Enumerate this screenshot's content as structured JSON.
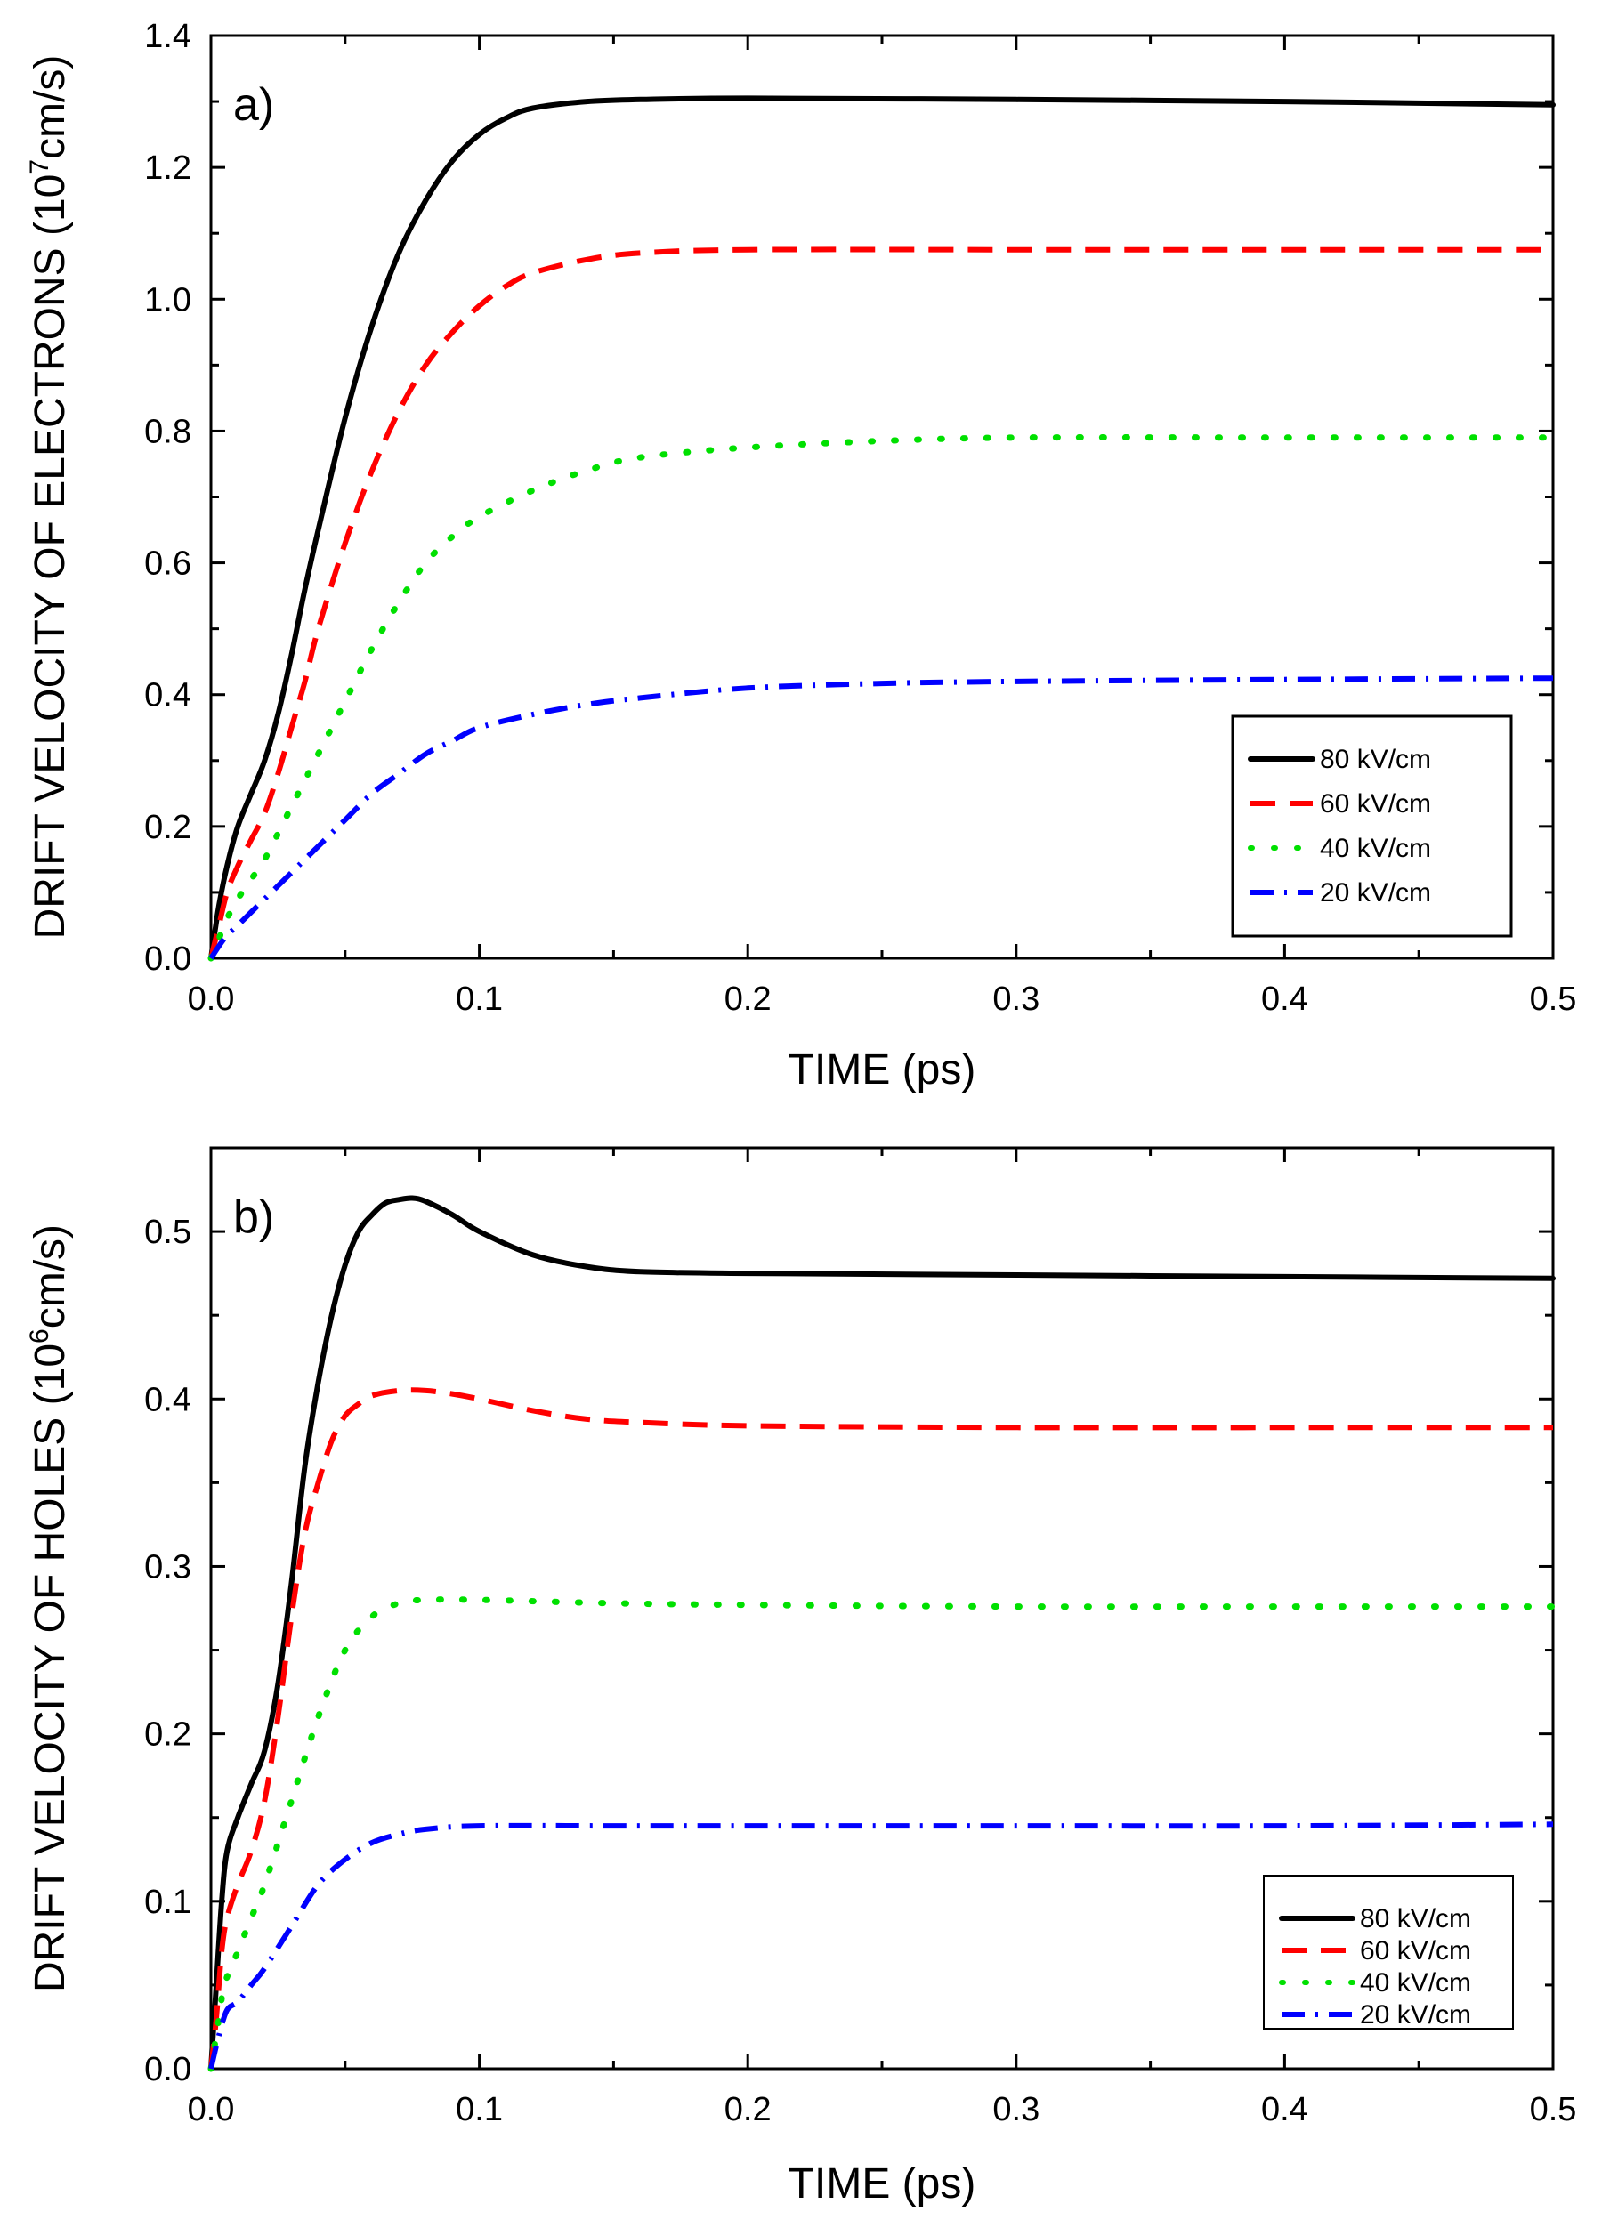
{
  "chart_data": [
    {
      "type": "line",
      "panel_label": "a)",
      "xlabel": "TIME (ps)",
      "ylabel_main": "DRIFT VELOCITY OF ELECTRONS (10",
      "ylabel_exp": "7",
      "ylabel_tail": "cm/s)",
      "xlim": [
        0,
        0.5
      ],
      "ylim": [
        0,
        1.4
      ],
      "xticks": [
        0.0,
        0.1,
        0.2,
        0.3,
        0.4,
        0.5
      ],
      "xtick_labels": [
        "0.0",
        "0.1",
        "0.2",
        "0.3",
        "0.4",
        "0.5"
      ],
      "yticks": [
        0.0,
        0.2,
        0.4,
        0.6,
        0.8,
        1.0,
        1.2,
        1.4
      ],
      "ytick_labels": [
        "0.0",
        "0.2",
        "0.4",
        "0.6",
        "0.8",
        "1.0",
        "1.2",
        "1.4"
      ],
      "legend_position": "bottom-right",
      "series": [
        {
          "name": "80 kV/cm",
          "style": "solid",
          "color": "#000000",
          "points": [
            [
              0,
              0
            ],
            [
              0.003,
              0.08
            ],
            [
              0.006,
              0.14
            ],
            [
              0.01,
              0.2
            ],
            [
              0.015,
              0.25
            ],
            [
              0.02,
              0.3
            ],
            [
              0.025,
              0.37
            ],
            [
              0.03,
              0.46
            ],
            [
              0.035,
              0.56
            ],
            [
              0.04,
              0.65
            ],
            [
              0.05,
              0.82
            ],
            [
              0.06,
              0.96
            ],
            [
              0.07,
              1.07
            ],
            [
              0.08,
              1.15
            ],
            [
              0.09,
              1.21
            ],
            [
              0.1,
              1.25
            ],
            [
              0.11,
              1.275
            ],
            [
              0.12,
              1.29
            ],
            [
              0.14,
              1.3
            ],
            [
              0.16,
              1.303
            ],
            [
              0.2,
              1.305
            ],
            [
              0.3,
              1.303
            ],
            [
              0.4,
              1.3
            ],
            [
              0.5,
              1.295
            ]
          ]
        },
        {
          "name": "60 kV/cm",
          "style": "dashed",
          "color": "#ff0000",
          "points": [
            [
              0,
              0
            ],
            [
              0.003,
              0.05
            ],
            [
              0.006,
              0.1
            ],
            [
              0.01,
              0.14
            ],
            [
              0.015,
              0.18
            ],
            [
              0.02,
              0.22
            ],
            [
              0.025,
              0.28
            ],
            [
              0.03,
              0.35
            ],
            [
              0.035,
              0.42
            ],
            [
              0.04,
              0.5
            ],
            [
              0.05,
              0.63
            ],
            [
              0.06,
              0.74
            ],
            [
              0.07,
              0.83
            ],
            [
              0.08,
              0.9
            ],
            [
              0.09,
              0.95
            ],
            [
              0.1,
              0.99
            ],
            [
              0.11,
              1.02
            ],
            [
              0.12,
              1.04
            ],
            [
              0.14,
              1.06
            ],
            [
              0.16,
              1.07
            ],
            [
              0.2,
              1.075
            ],
            [
              0.3,
              1.075
            ],
            [
              0.4,
              1.075
            ],
            [
              0.5,
              1.075
            ]
          ]
        },
        {
          "name": "40 kV/cm",
          "style": "dotted",
          "color": "#00e000",
          "points": [
            [
              0,
              0
            ],
            [
              0.003,
              0.03
            ],
            [
              0.006,
              0.06
            ],
            [
              0.01,
              0.09
            ],
            [
              0.015,
              0.12
            ],
            [
              0.02,
              0.15
            ],
            [
              0.03,
              0.23
            ],
            [
              0.04,
              0.31
            ],
            [
              0.05,
              0.39
            ],
            [
              0.06,
              0.47
            ],
            [
              0.07,
              0.54
            ],
            [
              0.08,
              0.6
            ],
            [
              0.09,
              0.64
            ],
            [
              0.1,
              0.67
            ],
            [
              0.12,
              0.71
            ],
            [
              0.14,
              0.74
            ],
            [
              0.16,
              0.76
            ],
            [
              0.2,
              0.775
            ],
            [
              0.25,
              0.785
            ],
            [
              0.3,
              0.79
            ],
            [
              0.4,
              0.79
            ],
            [
              0.5,
              0.79
            ]
          ]
        },
        {
          "name": "20 kV/cm",
          "style": "dashdot",
          "color": "#0000ff",
          "points": [
            [
              0,
              0
            ],
            [
              0.005,
              0.03
            ],
            [
              0.01,
              0.05
            ],
            [
              0.015,
              0.07
            ],
            [
              0.02,
              0.09
            ],
            [
              0.03,
              0.13
            ],
            [
              0.04,
              0.17
            ],
            [
              0.05,
              0.21
            ],
            [
              0.06,
              0.25
            ],
            [
              0.07,
              0.28
            ],
            [
              0.08,
              0.31
            ],
            [
              0.09,
              0.33
            ],
            [
              0.1,
              0.35
            ],
            [
              0.12,
              0.37
            ],
            [
              0.14,
              0.385
            ],
            [
              0.16,
              0.395
            ],
            [
              0.2,
              0.41
            ],
            [
              0.25,
              0.417
            ],
            [
              0.3,
              0.42
            ],
            [
              0.4,
              0.423
            ],
            [
              0.5,
              0.425
            ]
          ]
        }
      ]
    },
    {
      "type": "line",
      "panel_label": "b)",
      "xlabel": "TIME (ps)",
      "ylabel_main": "DRIFT VELOCITY OF HOLES (10",
      "ylabel_exp": "6",
      "ylabel_tail": "cm/s)",
      "xlim": [
        0,
        0.5
      ],
      "ylim": [
        0,
        0.55
      ],
      "xticks": [
        0.0,
        0.1,
        0.2,
        0.3,
        0.4,
        0.5
      ],
      "xtick_labels": [
        "0.0",
        "0.1",
        "0.2",
        "0.3",
        "0.4",
        "0.5"
      ],
      "yticks": [
        0.0,
        0.1,
        0.2,
        0.3,
        0.4,
        0.5
      ],
      "ytick_labels": [
        "0.0",
        "0.1",
        "0.2",
        "0.3",
        "0.4",
        "0.5"
      ],
      "legend_position": "bottom-right",
      "series": [
        {
          "name": "80 kV/cm",
          "style": "solid",
          "color": "#000000",
          "points": [
            [
              0,
              0
            ],
            [
              0.002,
              0.05
            ],
            [
              0.004,
              0.1
            ],
            [
              0.006,
              0.13
            ],
            [
              0.01,
              0.15
            ],
            [
              0.015,
              0.17
            ],
            [
              0.02,
              0.19
            ],
            [
              0.025,
              0.23
            ],
            [
              0.03,
              0.29
            ],
            [
              0.035,
              0.36
            ],
            [
              0.04,
              0.41
            ],
            [
              0.045,
              0.45
            ],
            [
              0.05,
              0.48
            ],
            [
              0.055,
              0.5
            ],
            [
              0.06,
              0.51
            ],
            [
              0.065,
              0.517
            ],
            [
              0.07,
              0.519
            ],
            [
              0.075,
              0.52
            ],
            [
              0.08,
              0.518
            ],
            [
              0.09,
              0.51
            ],
            [
              0.1,
              0.5
            ],
            [
              0.12,
              0.486
            ],
            [
              0.14,
              0.479
            ],
            [
              0.16,
              0.476
            ],
            [
              0.2,
              0.475
            ],
            [
              0.3,
              0.474
            ],
            [
              0.4,
              0.473
            ],
            [
              0.5,
              0.472
            ]
          ]
        },
        {
          "name": "60 kV/cm",
          "style": "dashed",
          "color": "#ff0000",
          "points": [
            [
              0,
              0
            ],
            [
              0.002,
              0.03
            ],
            [
              0.004,
              0.07
            ],
            [
              0.006,
              0.09
            ],
            [
              0.01,
              0.11
            ],
            [
              0.015,
              0.13
            ],
            [
              0.02,
              0.16
            ],
            [
              0.025,
              0.21
            ],
            [
              0.03,
              0.27
            ],
            [
              0.035,
              0.32
            ],
            [
              0.04,
              0.35
            ],
            [
              0.045,
              0.375
            ],
            [
              0.05,
              0.39
            ],
            [
              0.055,
              0.397
            ],
            [
              0.06,
              0.402
            ],
            [
              0.07,
              0.405
            ],
            [
              0.08,
              0.405
            ],
            [
              0.09,
              0.403
            ],
            [
              0.1,
              0.4
            ],
            [
              0.12,
              0.393
            ],
            [
              0.14,
              0.388
            ],
            [
              0.16,
              0.386
            ],
            [
              0.2,
              0.384
            ],
            [
              0.3,
              0.383
            ],
            [
              0.4,
              0.383
            ],
            [
              0.5,
              0.383
            ]
          ]
        },
        {
          "name": "40 kV/cm",
          "style": "dotted",
          "color": "#00e000",
          "points": [
            [
              0,
              0
            ],
            [
              0.003,
              0.03
            ],
            [
              0.005,
              0.05
            ],
            [
              0.01,
              0.07
            ],
            [
              0.015,
              0.09
            ],
            [
              0.02,
              0.11
            ],
            [
              0.03,
              0.16
            ],
            [
              0.04,
              0.21
            ],
            [
              0.05,
              0.25
            ],
            [
              0.06,
              0.27
            ],
            [
              0.07,
              0.278
            ],
            [
              0.08,
              0.28
            ],
            [
              0.1,
              0.28
            ],
            [
              0.15,
              0.278
            ],
            [
              0.2,
              0.277
            ],
            [
              0.3,
              0.276
            ],
            [
              0.4,
              0.276
            ],
            [
              0.5,
              0.276
            ]
          ]
        },
        {
          "name": "20 kV/cm",
          "style": "dashdot",
          "color": "#0000ff",
          "points": [
            [
              0,
              0
            ],
            [
              0.003,
              0.02
            ],
            [
              0.006,
              0.035
            ],
            [
              0.01,
              0.04
            ],
            [
              0.015,
              0.05
            ],
            [
              0.02,
              0.06
            ],
            [
              0.03,
              0.085
            ],
            [
              0.04,
              0.11
            ],
            [
              0.05,
              0.125
            ],
            [
              0.06,
              0.135
            ],
            [
              0.07,
              0.14
            ],
            [
              0.08,
              0.143
            ],
            [
              0.1,
              0.145
            ],
            [
              0.15,
              0.145
            ],
            [
              0.2,
              0.145
            ],
            [
              0.3,
              0.145
            ],
            [
              0.4,
              0.145
            ],
            [
              0.5,
              0.146
            ]
          ]
        }
      ]
    }
  ]
}
